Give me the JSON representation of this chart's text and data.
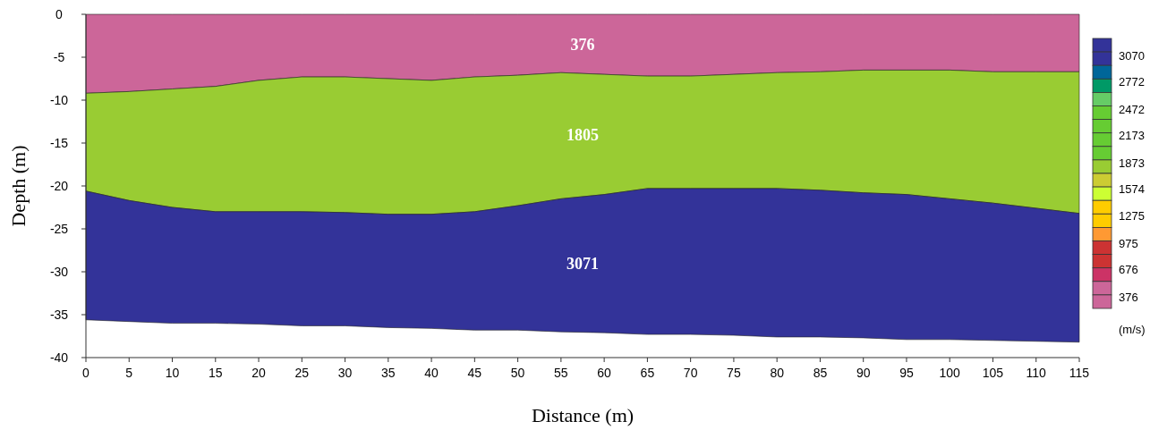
{
  "chart_data": {
    "type": "area",
    "stacked": true,
    "xlabel": "Distance (m)",
    "ylabel": "Depth (m)",
    "clabel": "(m/s)",
    "x": [
      0,
      5,
      10,
      15,
      20,
      25,
      30,
      35,
      40,
      45,
      50,
      55,
      60,
      65,
      70,
      75,
      80,
      85,
      90,
      95,
      100,
      105,
      110,
      115
    ],
    "series": [
      {
        "name": "376",
        "color": "#cc6699",
        "values": [
          -9.2,
          -9.0,
          -8.7,
          -8.4,
          -7.7,
          -7.3,
          -7.3,
          -7.5,
          -7.7,
          -7.3,
          -7.1,
          -6.8,
          -7.0,
          -7.2,
          -7.2,
          -7.0,
          -6.8,
          -6.7,
          -6.5,
          -6.5,
          -6.5,
          -6.7,
          -6.7,
          -6.7
        ]
      },
      {
        "name": "1805",
        "color": "#99cc33",
        "values": [
          -11.4,
          -12.7,
          -13.8,
          -14.6,
          -15.3,
          -15.7,
          -15.8,
          -15.8,
          -15.6,
          -15.7,
          -15.2,
          -14.7,
          -14.0,
          -13.1,
          -13.1,
          -13.3,
          -13.5,
          -13.8,
          -14.3,
          -14.5,
          -15.0,
          -15.3,
          -15.9,
          -16.5
        ]
      },
      {
        "name": "3071",
        "color": "#333399",
        "values": [
          -15.0,
          -14.1,
          -13.5,
          -13.0,
          -13.1,
          -13.3,
          -13.2,
          -13.2,
          -13.3,
          -13.8,
          -14.5,
          -15.5,
          -16.1,
          -17.0,
          -17.0,
          -17.1,
          -17.3,
          -17.1,
          -16.9,
          -16.9,
          -16.4,
          -16.0,
          -15.5,
          -15.0
        ]
      }
    ],
    "xlim": [
      0,
      115
    ],
    "xticks": [
      0,
      5,
      10,
      15,
      20,
      25,
      30,
      35,
      40,
      45,
      50,
      55,
      60,
      65,
      70,
      75,
      80,
      85,
      90,
      95,
      100,
      105,
      110,
      115
    ],
    "ylim": [
      -40,
      0
    ],
    "yticks": [
      0,
      -5,
      -10,
      -15,
      -20,
      -25,
      -30,
      -35,
      -40
    ],
    "clim": [
      246,
      3260
    ],
    "cticks": [
      3070,
      2772,
      2472,
      2173,
      1873,
      1574,
      1275,
      975,
      676,
      376
    ]
  }
}
